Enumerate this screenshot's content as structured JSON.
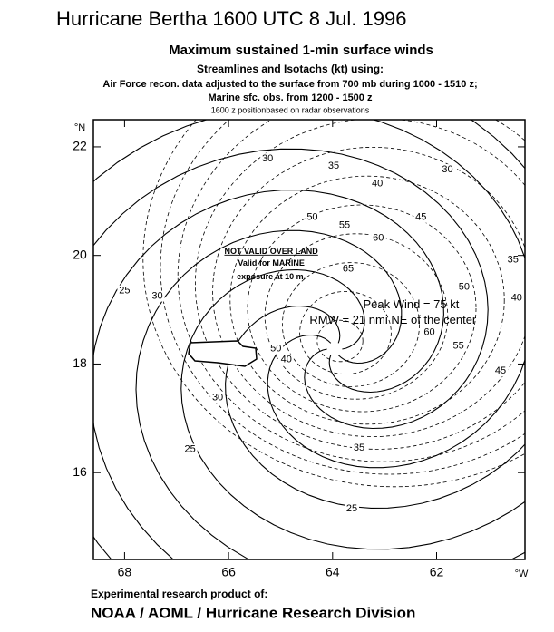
{
  "header": {
    "title": "Hurricane Bertha 1600 UTC 8 Jul. 1996",
    "subtitle": "Maximum sustained 1-min surface winds",
    "lines": [
      "Streamlines and Isotachs (kt) using:",
      "Air Force recon. data adjusted to the surface from 700 mb during 1000 - 1510 z;",
      "Marine sfc. obs.  from 1200 - 1500 z",
      "1600 z positionbased on radar observations"
    ]
  },
  "map": {
    "xlim": [
      68.6,
      60.3
    ],
    "ylim": [
      14.4,
      22.5
    ],
    "xticks": [
      68,
      66,
      64,
      62
    ],
    "yticks": [
      16,
      18,
      20,
      22
    ],
    "x_unit": "°W",
    "y_unit": "°N",
    "annotations": [
      {
        "text": "NOT VALID OVER LAND",
        "lon": 65.18,
        "lat": 20.07
      },
      {
        "text": "Valid for MARINE",
        "lon": 65.18,
        "lat": 19.85
      },
      {
        "text": "exposure at 10 m.",
        "lon": 65.18,
        "lat": 19.6
      },
      {
        "text": "Peak Wind = 75 kt",
        "lon": 62.49,
        "lat": 19.08
      },
      {
        "text": "RMW = 21 nmi NE of the center",
        "lon": 62.84,
        "lat": 18.8
      }
    ],
    "isotach_labels": [
      {
        "value": 30,
        "lon": 65.25,
        "lat": 21.78
      },
      {
        "value": 35,
        "lon": 63.98,
        "lat": 21.65
      },
      {
        "value": 30,
        "lon": 61.79,
        "lat": 21.58
      },
      {
        "value": 40,
        "lon": 63.14,
        "lat": 21.32
      },
      {
        "value": 45,
        "lon": 62.3,
        "lat": 20.7
      },
      {
        "value": 50,
        "lon": 64.39,
        "lat": 20.7
      },
      {
        "value": 55,
        "lon": 63.77,
        "lat": 20.55
      },
      {
        "value": 60,
        "lon": 63.12,
        "lat": 20.32
      },
      {
        "value": 65,
        "lon": 63.7,
        "lat": 19.75
      },
      {
        "value": 50,
        "lon": 61.47,
        "lat": 19.42
      },
      {
        "value": 35,
        "lon": 60.53,
        "lat": 19.92
      },
      {
        "value": 40,
        "lon": 60.46,
        "lat": 19.22
      },
      {
        "value": 30,
        "lon": 67.37,
        "lat": 19.25
      },
      {
        "value": 25,
        "lon": 68.0,
        "lat": 19.35
      },
      {
        "value": 60,
        "lon": 62.14,
        "lat": 18.58
      },
      {
        "value": 55,
        "lon": 61.58,
        "lat": 18.33
      },
      {
        "value": 45,
        "lon": 60.77,
        "lat": 17.87
      },
      {
        "value": 50,
        "lon": 65.09,
        "lat": 18.28
      },
      {
        "value": 40,
        "lon": 64.89,
        "lat": 18.08
      },
      {
        "value": 30,
        "lon": 66.21,
        "lat": 17.38
      },
      {
        "value": 25,
        "lon": 66.74,
        "lat": 16.43
      },
      {
        "value": 35,
        "lon": 63.49,
        "lat": 16.45
      },
      {
        "value": 25,
        "lon": 63.63,
        "lat": 15.33
      }
    ]
  },
  "footer": {
    "note": "Experimental research product of:",
    "org": "NOAA / AOML / Hurricane Research Division"
  }
}
